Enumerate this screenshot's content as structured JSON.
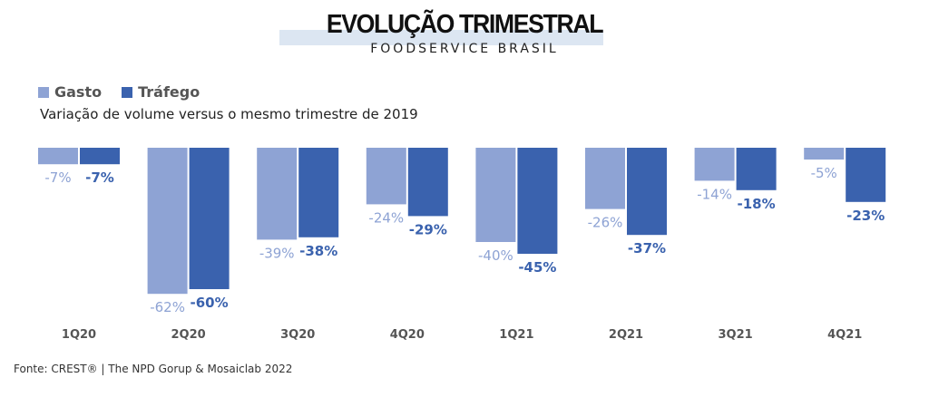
{
  "header": {
    "title": "EVOLUÇÃO TRIMESTRAL",
    "subtitle": "FOODSERVICE BRASIL"
  },
  "legend": [
    {
      "label": "Gasto",
      "color": "#8ea3d4"
    },
    {
      "label": "Tráfego",
      "color": "#3a62ae"
    }
  ],
  "note": "Variação de volume versus o mesmo trimestre de 2019",
  "source": "Fonte: CREST® | The NPD Gorup &  Mosaiclab 2022",
  "chart_data": {
    "type": "bar",
    "title": "EVOLUÇÃO TRIMESTRAL",
    "subtitle": "FOODSERVICE BRASIL",
    "ylabel": "Variação de volume versus o mesmo trimestre de 2019",
    "xlabel": "",
    "categories": [
      "1Q20",
      "2Q20",
      "3Q20",
      "4Q20",
      "1Q21",
      "2Q21",
      "3Q21",
      "4Q21"
    ],
    "series": [
      {
        "name": "Gasto",
        "color": "#8ea3d4",
        "values": [
          -7,
          -62,
          -39,
          -24,
          -40,
          -26,
          -14,
          -5
        ],
        "labels": [
          "-7%",
          "-62%",
          "-39%",
          "-24%",
          "-40%",
          "-26%",
          "-14%",
          "-5%"
        ]
      },
      {
        "name": "Tráfego",
        "color": "#3a62ae",
        "values": [
          -7,
          -60,
          -38,
          -29,
          -45,
          -37,
          -18,
          -23
        ],
        "labels": [
          "-7%",
          "-60%",
          "-38%",
          "-29%",
          "-45%",
          "-37%",
          "-18%",
          "-23%"
        ]
      }
    ],
    "ylim": [
      -65,
      0
    ],
    "grid": false,
    "legend_position": "top-left",
    "value_format": "percent"
  }
}
